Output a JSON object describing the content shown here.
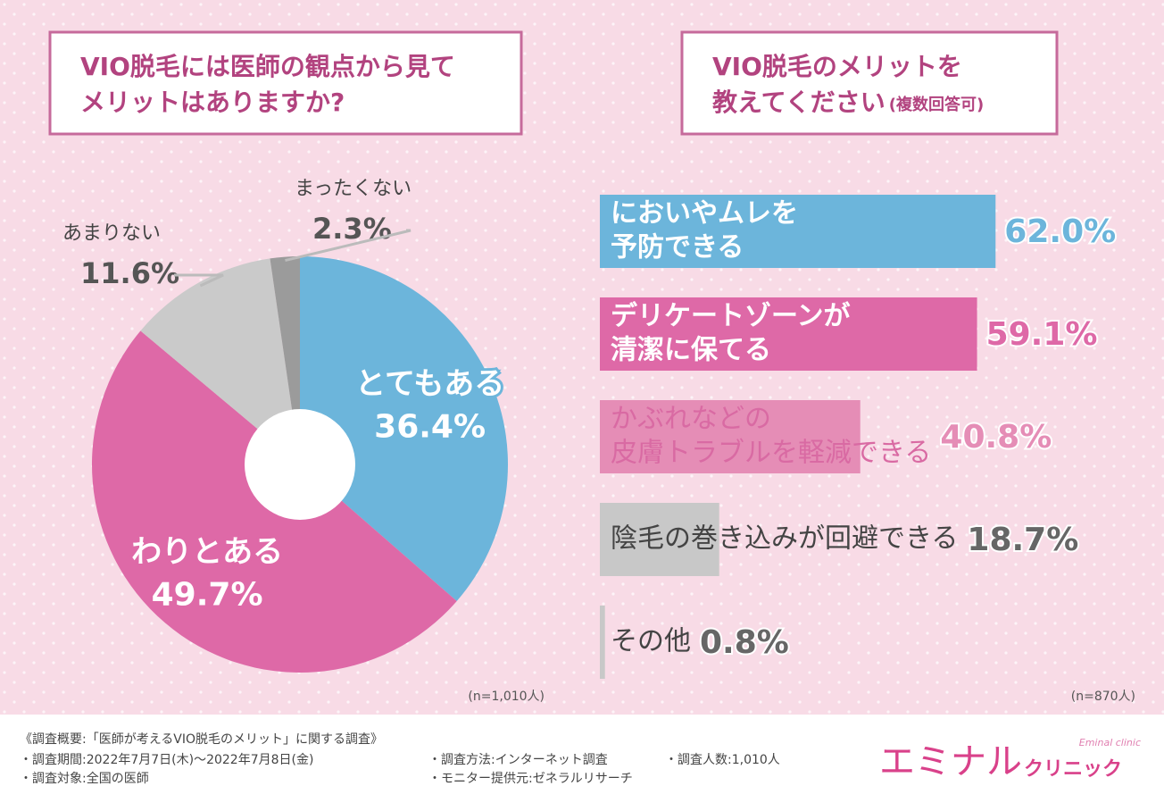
{
  "chart_data": [
    {
      "type": "pie",
      "title": [
        "VIO脱毛には医師の観点から見て",
        "メリットはありますか?"
      ],
      "categories": [
        "とてもある",
        "わりとある",
        "あまりない",
        "まったくない"
      ],
      "values": [
        36.4,
        49.7,
        11.6,
        2.3
      ],
      "value_labels": [
        "36.4%",
        "49.7%",
        "11.6%",
        "2.3%"
      ],
      "colors": [
        "#6cb5db",
        "#de69a7",
        "#cacaca",
        "#9b9b9b"
      ],
      "note": "(n=1,010人)"
    },
    {
      "type": "hbar",
      "title": [
        "VIO脱毛のメリットを",
        "教えてください"
      ],
      "title_suffix": "(複数回答可)",
      "categories": [
        [
          "においやムレを",
          "予防できる"
        ],
        [
          "デリケートゾーンが",
          "清潔に保てる"
        ],
        [
          "かぶれなどの",
          "皮膚トラブルを軽減できる"
        ],
        [
          "陰毛の巻き込みが回避できる"
        ],
        [
          "その他"
        ]
      ],
      "values": [
        62.0,
        59.1,
        40.8,
        18.7,
        0.8
      ],
      "value_labels": [
        "62.0%",
        "59.1%",
        "40.8%",
        "18.7%",
        "0.8%"
      ],
      "colors": [
        "#6cb5db",
        "#de69a7",
        "#e58db6",
        "#c8c8c8",
        "#c8c8c8"
      ],
      "xlim": [
        0,
        100
      ],
      "note": "(n=870人)"
    }
  ],
  "footer": {
    "heading": "《調査概要:「医師が考えるVIO脱毛のメリット」に関する調査》",
    "items": [
      "・調査期間:2022年7月7日(木)〜2022年7月8日(金)",
      "・調査方法:インターネット調査",
      "・調査人数:1,010人",
      "・調査対象:全国の医師",
      "・モニター提供元:ゼネラルリサーチ"
    ],
    "brand": "エミナル",
    "brand_sub": "クリニック",
    "brand_en": "Eminal clinic"
  }
}
